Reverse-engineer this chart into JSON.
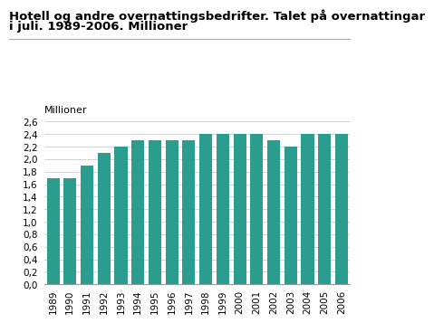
{
  "title_line1": "Hotell og andre overnattingsbedrifter. Talet på overnattingar",
  "title_line2": "i juli. 1989-2006. Millioner",
  "ylabel": "Millioner",
  "years": [
    "1989",
    "1990",
    "1991",
    "1992",
    "1993",
    "1994",
    "1995",
    "1996",
    "1997",
    "1998",
    "1999",
    "2000",
    "2001",
    "2002",
    "2003",
    "2004",
    "2005",
    "2006"
  ],
  "values": [
    1.7,
    1.7,
    1.9,
    2.1,
    2.2,
    2.3,
    2.3,
    2.3,
    2.3,
    2.4,
    2.4,
    2.4,
    2.4,
    2.3,
    2.2,
    2.4,
    2.4,
    2.4
  ],
  "bar_color": "#2a9d8f",
  "ylim": [
    0,
    2.6
  ],
  "yticks": [
    0.0,
    0.2,
    0.4,
    0.6,
    0.8,
    1.0,
    1.2,
    1.4,
    1.6,
    1.8,
    2.0,
    2.2,
    2.4,
    2.6
  ],
  "title_fontsize": 9.5,
  "ylabel_fontsize": 8,
  "tick_fontsize": 7.5,
  "background_color": "#ffffff",
  "grid_color": "#cccccc",
  "separator_color": "#aaaaaa"
}
